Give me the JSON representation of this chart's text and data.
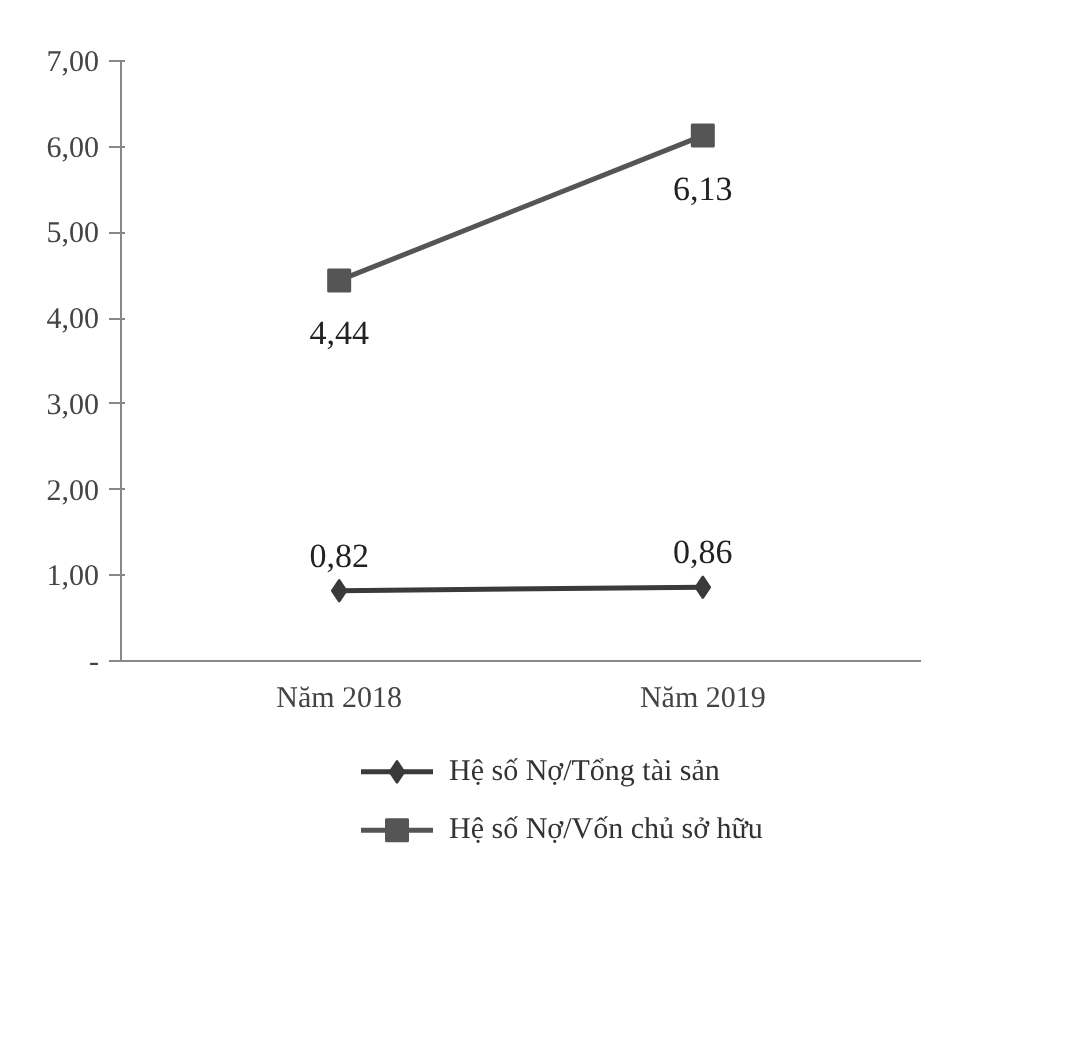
{
  "chart_data": {
    "type": "line",
    "categories": [
      "Năm 2018",
      "Năm 2019"
    ],
    "series": [
      {
        "name": "Hệ số Nợ/Tổng tài sản",
        "color": "#3a3a3a",
        "marker": "diamond",
        "values": [
          0.82,
          0.86
        ],
        "value_labels": [
          "0,82",
          "0,86"
        ]
      },
      {
        "name": "Hệ số Nợ/Vốn chủ sở hữu",
        "color": "#555555",
        "marker": "square",
        "values": [
          4.44,
          6.13
        ],
        "value_labels": [
          "4,44",
          "6,13"
        ]
      }
    ],
    "ylim": [
      0,
      7
    ],
    "yticks": [
      {
        "value": 0,
        "label": "-"
      },
      {
        "value": 1,
        "label": "1,00"
      },
      {
        "value": 2,
        "label": "2,00"
      },
      {
        "value": 3,
        "label": "3,00"
      },
      {
        "value": 4,
        "label": "4,00"
      },
      {
        "value": 5,
        "label": "5,00"
      },
      {
        "value": 6,
        "label": "6,00"
      },
      {
        "value": 7,
        "label": "7,00"
      }
    ],
    "grid": false,
    "legend": "bottom",
    "line_style": "solid"
  }
}
